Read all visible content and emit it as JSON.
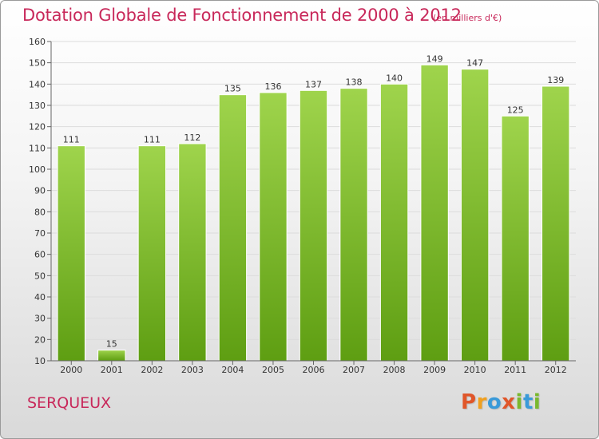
{
  "header": {
    "title": "Dotation Globale de Fonctionnement de 2000 à 2012",
    "subtitle": "(en milliers d'€)"
  },
  "footer": {
    "commune": "SERQUEUX",
    "logo_letters": [
      "P",
      "r",
      "o",
      "x",
      "i",
      "t",
      "i"
    ]
  },
  "colors": {
    "title": "#c8285a",
    "bar_top": "#9fd44c",
    "bar_bottom": "#5e9e12",
    "logo": [
      "#e0562a",
      "#f0a020",
      "#3a9ad9",
      "#e0562a",
      "#7ab82e",
      "#3a9ad9",
      "#7ab82e"
    ]
  },
  "chart_data": {
    "type": "bar",
    "categories": [
      "2000",
      "2001",
      "2002",
      "2003",
      "2004",
      "2005",
      "2006",
      "2007",
      "2008",
      "2009",
      "2010",
      "2011",
      "2012"
    ],
    "values": [
      111,
      15,
      111,
      112,
      135,
      136,
      137,
      138,
      140,
      149,
      147,
      125,
      139
    ],
    "ylim": [
      10,
      160
    ],
    "yticks": [
      10,
      20,
      30,
      40,
      50,
      60,
      70,
      80,
      90,
      100,
      110,
      120,
      130,
      140,
      150,
      160
    ],
    "grid": true,
    "legend": "none"
  }
}
